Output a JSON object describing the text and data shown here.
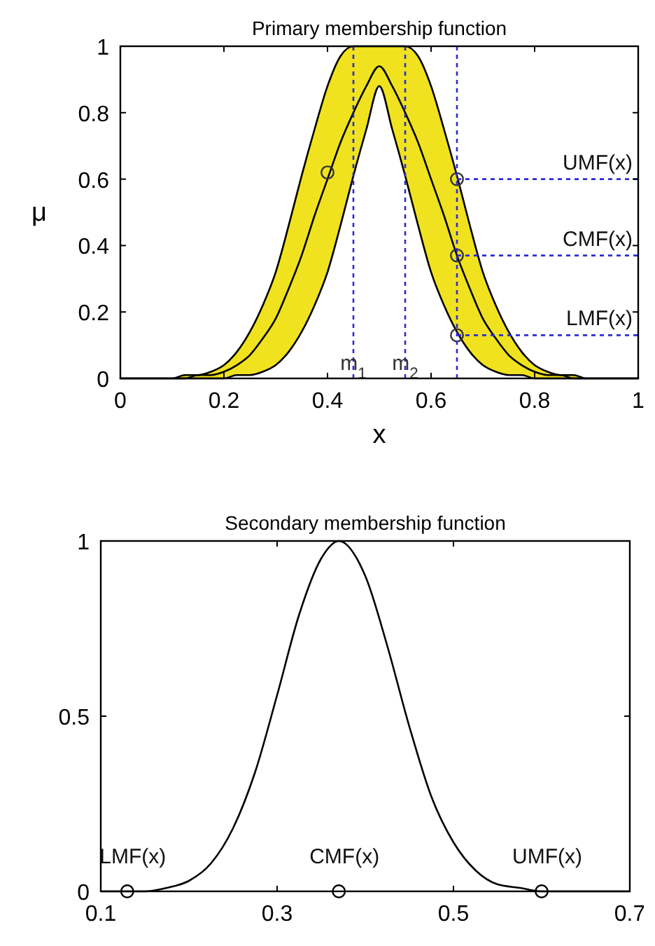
{
  "chart_data": [
    {
      "type": "line",
      "title": "Primary membership function",
      "xlabel": "x",
      "ylabel": "μ",
      "x": [
        0,
        0.1,
        0.125,
        0.15,
        0.175,
        0.2,
        0.225,
        0.25,
        0.275,
        0.3,
        0.325,
        0.35,
        0.375,
        0.4,
        0.425,
        0.45,
        0.475,
        0.5,
        0.525,
        0.55,
        0.575,
        0.6,
        0.625,
        0.65,
        0.675,
        0.7,
        0.725,
        0.75,
        0.775,
        0.8,
        0.825,
        0.85,
        0.875,
        0.9,
        1
      ],
      "series": [
        {
          "color": "#000000",
          "values": [
            0,
            0,
            0,
            0.01,
            0.01,
            0.02,
            0.04,
            0.07,
            0.12,
            0.18,
            0.27,
            0.37,
            0.49,
            0.6,
            0.71,
            0.8,
            0.88,
            0.94,
            0.88,
            0.8,
            0.71,
            0.6,
            0.49,
            0.37,
            0.27,
            0.18,
            0.12,
            0.07,
            0.04,
            0.02,
            0.01,
            0.01,
            0,
            0,
            0
          ],
          "lower": [
            0,
            0,
            0,
            0,
            0,
            0,
            0.01,
            0.01,
            0.02,
            0.04,
            0.08,
            0.14,
            0.22,
            0.32,
            0.46,
            0.61,
            0.75,
            0.88,
            0.75,
            0.61,
            0.46,
            0.32,
            0.22,
            0.14,
            0.08,
            0.04,
            0.02,
            0.01,
            0.01,
            0,
            0,
            0,
            0,
            0,
            0
          ],
          "upper": [
            0,
            0,
            0.01,
            0.01,
            0.02,
            0.04,
            0.08,
            0.14,
            0.22,
            0.32,
            0.46,
            0.61,
            0.75,
            0.88,
            0.97,
            1,
            1,
            1,
            1,
            1,
            0.97,
            0.88,
            0.75,
            0.61,
            0.46,
            0.32,
            0.22,
            0.14,
            0.08,
            0.04,
            0.02,
            0.01,
            0.01,
            0,
            0
          ]
        },
        {
          "type": "scatter",
          "color": "#333333",
          "marker": "circle",
          "x": [
            0.4,
            0.65,
            0.65,
            0.65
          ],
          "values": [
            0.62,
            0.6,
            0.37,
            0.13
          ]
        }
      ],
      "ref_lines": [
        {
          "axis": "x",
          "value": 0.45,
          "label": "m$_{1}$",
          "color": "#2b2bd6",
          "line_style": "dotted"
        },
        {
          "axis": "x",
          "value": 0.55,
          "label": "m$_{2}$",
          "color": "#2b2bd6",
          "line_style": "dotted"
        },
        {
          "axis": "x",
          "value": 0.65,
          "color": "#2b2bd6",
          "line_style": "dotted"
        },
        {
          "axis": "y",
          "value": 0.6,
          "label": "UMF(x)",
          "color": "#2b2bd6",
          "line_style": "dotted"
        },
        {
          "axis": "y",
          "value": 0.37,
          "label": "CMF(x)",
          "color": "#2b2bd6",
          "line_style": "dotted"
        },
        {
          "axis": "y",
          "value": 0.13,
          "label": "LMF(x)",
          "color": "#2b2bd6",
          "line_style": "dotted"
        }
      ],
      "xlim": [
        0,
        1
      ],
      "ylim": [
        0,
        1
      ],
      "xticks": [
        0,
        0.2,
        0.4,
        0.6,
        0.8,
        1
      ],
      "yticks": [
        0,
        0.2,
        0.4,
        0.6,
        0.8,
        1
      ],
      "grid": false
    },
    {
      "type": "line",
      "title": "Secondary membership function",
      "x": [
        0.1,
        0.125,
        0.15,
        0.175,
        0.2,
        0.225,
        0.25,
        0.275,
        0.3,
        0.325,
        0.35,
        0.37,
        0.4,
        0.425,
        0.45,
        0.475,
        0.5,
        0.525,
        0.55,
        0.575,
        0.6,
        0.625,
        0.65,
        0.675,
        0.7
      ],
      "series": [
        {
          "color": "#000000",
          "values": [
            0,
            0,
            0,
            0.01,
            0.03,
            0.08,
            0.18,
            0.34,
            0.56,
            0.79,
            0.95,
            1,
            0.9,
            0.7,
            0.47,
            0.27,
            0.14,
            0.06,
            0.02,
            0.01,
            0,
            0,
            0,
            0,
            0
          ]
        },
        {
          "type": "scatter",
          "color": "#000000",
          "marker": "circle",
          "x": [
            0.13,
            0.37,
            0.6
          ],
          "values": [
            0,
            0,
            0
          ]
        }
      ],
      "annotations": [
        {
          "text": "LMF(x)",
          "x": 0.13,
          "y": 0
        },
        {
          "text": "CMF(x)",
          "x": 0.37,
          "y": 0
        },
        {
          "text": "UMF(x)",
          "x": 0.6,
          "y": 0
        }
      ],
      "xlim": [
        0.1,
        0.7
      ],
      "ylim": [
        0,
        1
      ],
      "xticks": [
        0.1,
        0.3,
        0.5,
        0.7
      ],
      "yticks": [
        0,
        0.5,
        1
      ],
      "grid": false
    }
  ]
}
